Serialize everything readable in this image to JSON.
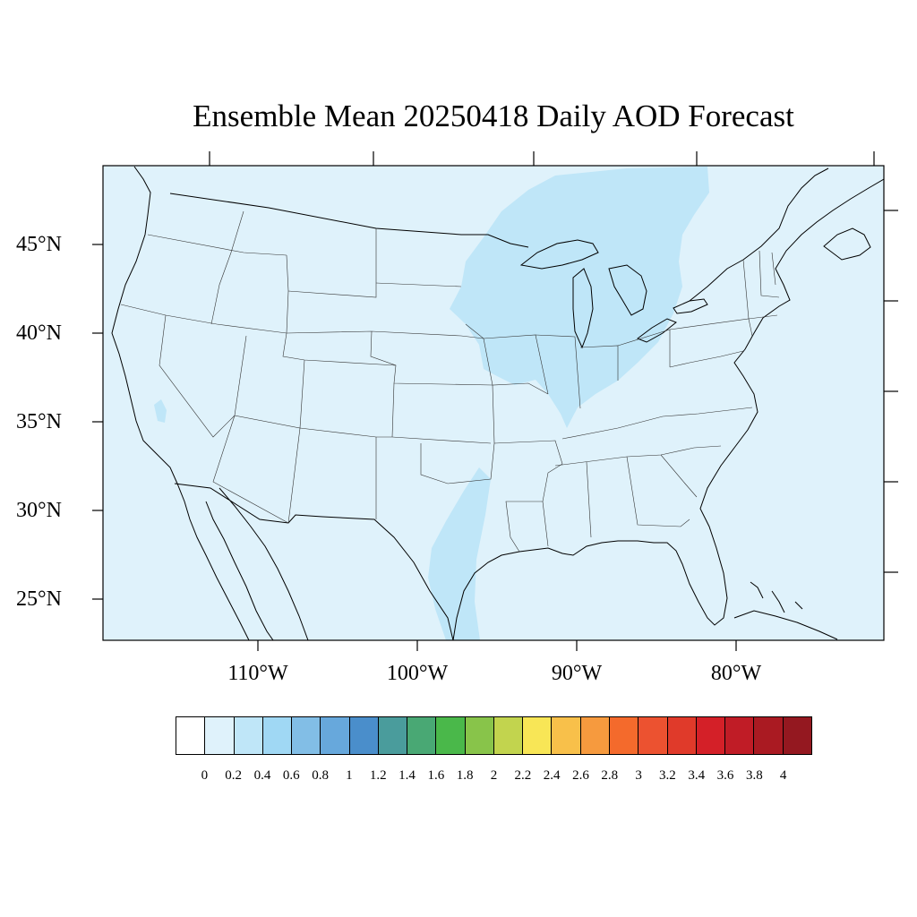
{
  "title": "Ensemble Mean 20250418 Daily AOD Forecast",
  "latitude_labels": [
    "45°N",
    "40°N",
    "35°N",
    "30°N",
    "25°N"
  ],
  "longitude_labels": [
    "110°W",
    "100°W",
    "90°W",
    "80°W"
  ],
  "map": {
    "background_aod_range": "0 - 0.2",
    "highlight_aod_range": "0.2 - 0.4",
    "background_color": "#dff2fb",
    "highlight_color": "#bfe6f8",
    "border_color": "#000000"
  },
  "colorbar": {
    "colors": [
      "#ffffff",
      "#dff2fb",
      "#bfe6f8",
      "#a0d8f4",
      "#82bee6",
      "#67a8dc",
      "#4a8ecb",
      "#4a9c9c",
      "#49a874",
      "#4ab84a",
      "#88c44a",
      "#c2d44e",
      "#f8e656",
      "#f8c04a",
      "#f69a3e",
      "#f46a2c",
      "#ec5230",
      "#e03a2a",
      "#d42028",
      "#c01c26",
      "#aa1a22",
      "#941820"
    ],
    "labels": [
      "0",
      "0.2",
      "0.4",
      "0.6",
      "0.8",
      "1",
      "1.2",
      "1.4",
      "1.6",
      "1.8",
      "2",
      "2.2",
      "2.4",
      "2.6",
      "2.8",
      "3",
      "3.2",
      "3.4",
      "3.6",
      "3.8",
      "4"
    ]
  }
}
